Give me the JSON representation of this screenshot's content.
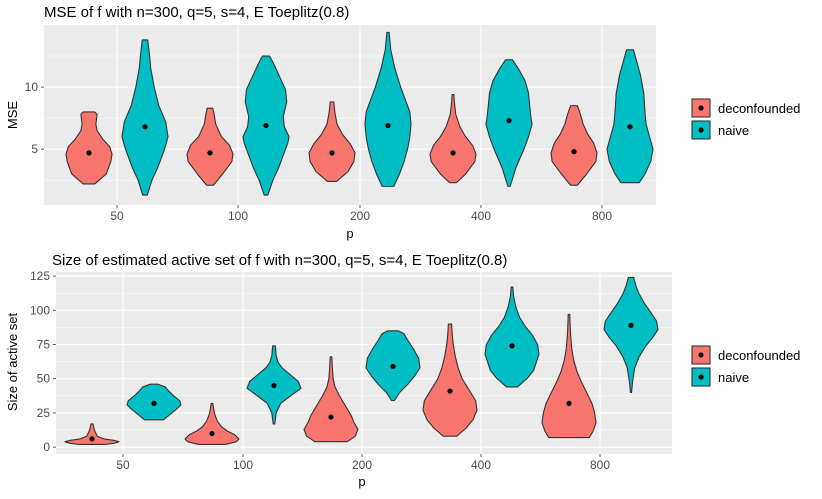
{
  "colors": {
    "deconfounded": "#F8766D",
    "naive": "#00BFC4"
  },
  "chart_data": [
    {
      "type": "violin",
      "title": "MSE of f with n=300, q=5, s=4, E Toeplitz(0.8)",
      "xlabel": "p",
      "ylabel": "MSE",
      "x_tick_labels": [
        "50",
        "100",
        "200",
        "400",
        "800"
      ],
      "y_ticks": [
        5,
        10
      ],
      "y_tick_labels": [
        "5",
        "10"
      ],
      "ylim": [
        0.5,
        15
      ],
      "legend": [
        "deconfounded",
        "naive"
      ],
      "groups": [
        {
          "p": "50",
          "series": "deconfounded",
          "min": 2.2,
          "max": 8.0,
          "median": 4.7,
          "density": [
            [
              2.2,
              0.25
            ],
            [
              3.0,
              0.75
            ],
            [
              4.0,
              0.95
            ],
            [
              4.6,
              1.0
            ],
            [
              5.2,
              0.9
            ],
            [
              5.8,
              0.6
            ],
            [
              6.5,
              0.35
            ],
            [
              7.0,
              0.3
            ],
            [
              7.8,
              0.35
            ],
            [
              8.0,
              0.25
            ]
          ]
        },
        {
          "p": "50",
          "series": "naive",
          "min": 1.3,
          "max": 13.8,
          "median": 6.8,
          "density": [
            [
              1.3,
              0.1
            ],
            [
              2.5,
              0.3
            ],
            [
              3.5,
              0.55
            ],
            [
              5.0,
              0.85
            ],
            [
              6.0,
              1.0
            ],
            [
              7.2,
              0.9
            ],
            [
              8.5,
              0.6
            ],
            [
              10.0,
              0.4
            ],
            [
              11.5,
              0.25
            ],
            [
              12.5,
              0.2
            ],
            [
              13.8,
              0.12
            ]
          ]
        },
        {
          "p": "100",
          "series": "deconfounded",
          "min": 2.1,
          "max": 8.3,
          "median": 4.7,
          "density": [
            [
              2.1,
              0.15
            ],
            [
              3.0,
              0.55
            ],
            [
              4.0,
              0.95
            ],
            [
              4.6,
              1.0
            ],
            [
              5.3,
              0.85
            ],
            [
              6.0,
              0.5
            ],
            [
              7.0,
              0.25
            ],
            [
              7.8,
              0.18
            ],
            [
              8.3,
              0.12
            ]
          ]
        },
        {
          "p": "100",
          "series": "naive",
          "min": 1.3,
          "max": 12.5,
          "median": 6.9,
          "density": [
            [
              1.3,
              0.08
            ],
            [
              2.5,
              0.3
            ],
            [
              3.5,
              0.55
            ],
            [
              4.5,
              0.75
            ],
            [
              5.5,
              0.95
            ],
            [
              6.0,
              1.0
            ],
            [
              6.8,
              0.8
            ],
            [
              7.6,
              0.75
            ],
            [
              8.8,
              0.9
            ],
            [
              9.8,
              0.85
            ],
            [
              11.0,
              0.55
            ],
            [
              12.0,
              0.3
            ],
            [
              12.5,
              0.15
            ]
          ]
        },
        {
          "p": "200",
          "series": "deconfounded",
          "min": 2.4,
          "max": 8.8,
          "median": 4.7,
          "density": [
            [
              2.4,
              0.2
            ],
            [
              3.2,
              0.7
            ],
            [
              4.0,
              0.95
            ],
            [
              4.7,
              1.0
            ],
            [
              5.4,
              0.8
            ],
            [
              6.2,
              0.45
            ],
            [
              7.0,
              0.22
            ],
            [
              8.0,
              0.12
            ],
            [
              8.8,
              0.08
            ]
          ]
        },
        {
          "p": "200",
          "series": "naive",
          "min": 2.0,
          "max": 14.4,
          "median": 6.9,
          "density": [
            [
              2.0,
              0.25
            ],
            [
              3.0,
              0.5
            ],
            [
              4.0,
              0.7
            ],
            [
              5.0,
              0.85
            ],
            [
              6.0,
              0.95
            ],
            [
              7.0,
              1.0
            ],
            [
              8.0,
              0.95
            ],
            [
              9.0,
              0.75
            ],
            [
              10.0,
              0.55
            ],
            [
              11.5,
              0.3
            ],
            [
              13.0,
              0.12
            ],
            [
              14.4,
              0.05
            ]
          ]
        },
        {
          "p": "400",
          "series": "deconfounded",
          "min": 2.3,
          "max": 9.4,
          "median": 4.7,
          "density": [
            [
              2.3,
              0.15
            ],
            [
              3.0,
              0.55
            ],
            [
              4.0,
              0.95
            ],
            [
              4.6,
              1.0
            ],
            [
              5.3,
              0.85
            ],
            [
              6.0,
              0.55
            ],
            [
              6.8,
              0.3
            ],
            [
              7.8,
              0.12
            ],
            [
              8.8,
              0.06
            ],
            [
              9.4,
              0.04
            ]
          ]
        },
        {
          "p": "400",
          "series": "naive",
          "min": 2.0,
          "max": 12.2,
          "median": 7.3,
          "density": [
            [
              2.0,
              0.05
            ],
            [
              3.5,
              0.3
            ],
            [
              5.0,
              0.65
            ],
            [
              6.0,
              0.85
            ],
            [
              7.0,
              1.0
            ],
            [
              7.6,
              0.95
            ],
            [
              8.5,
              0.9
            ],
            [
              9.5,
              0.85
            ],
            [
              10.5,
              0.7
            ],
            [
              11.5,
              0.4
            ],
            [
              12.2,
              0.15
            ]
          ]
        },
        {
          "p": "800",
          "series": "deconfounded",
          "min": 2.1,
          "max": 8.5,
          "median": 4.8,
          "density": [
            [
              2.1,
              0.15
            ],
            [
              3.0,
              0.55
            ],
            [
              4.0,
              0.95
            ],
            [
              4.7,
              1.0
            ],
            [
              5.5,
              0.85
            ],
            [
              6.2,
              0.6
            ],
            [
              7.0,
              0.4
            ],
            [
              7.8,
              0.28
            ],
            [
              8.5,
              0.15
            ]
          ]
        },
        {
          "p": "800",
          "series": "naive",
          "min": 2.3,
          "max": 13.0,
          "median": 6.8,
          "density": [
            [
              2.3,
              0.4
            ],
            [
              3.0,
              0.65
            ],
            [
              4.0,
              0.9
            ],
            [
              5.0,
              1.0
            ],
            [
              6.0,
              0.85
            ],
            [
              7.0,
              0.7
            ],
            [
              8.0,
              0.65
            ],
            [
              9.5,
              0.6
            ],
            [
              11.0,
              0.45
            ],
            [
              12.0,
              0.3
            ],
            [
              13.0,
              0.15
            ]
          ]
        }
      ]
    },
    {
      "type": "violin",
      "title": "Size of estimated active set of f with n=300, q=5, s=4, E Toeplitz(0.8)",
      "xlabel": "p",
      "ylabel": "Size of active set",
      "x_tick_labels": [
        "50",
        "100",
        "200",
        "400",
        "800"
      ],
      "y_ticks": [
        0,
        25,
        50,
        75,
        100,
        125
      ],
      "y_tick_labels": [
        "0",
        "25",
        "50",
        "75",
        "100",
        "125"
      ],
      "ylim": [
        -5,
        128
      ],
      "legend": [
        "deconfounded",
        "naive"
      ],
      "groups": [
        {
          "p": "50",
          "series": "deconfounded",
          "min": 2,
          "max": 17,
          "median": 6,
          "density": [
            [
              2,
              0.5
            ],
            [
              3,
              0.85
            ],
            [
              4,
              1.0
            ],
            [
              5,
              0.8
            ],
            [
              6,
              0.45
            ],
            [
              8,
              0.2
            ],
            [
              11,
              0.12
            ],
            [
              14,
              0.07
            ],
            [
              17,
              0.04
            ]
          ]
        },
        {
          "p": "50",
          "series": "naive",
          "min": 20,
          "max": 46,
          "median": 32,
          "density": [
            [
              20,
              0.35
            ],
            [
              24,
              0.6
            ],
            [
              28,
              0.85
            ],
            [
              31,
              1.0
            ],
            [
              34,
              0.95
            ],
            [
              38,
              0.7
            ],
            [
              42,
              0.5
            ],
            [
              44,
              0.42
            ],
            [
              46,
              0.15
            ]
          ]
        },
        {
          "p": "100",
          "series": "deconfounded",
          "min": 2,
          "max": 32,
          "median": 10,
          "density": [
            [
              2,
              0.5
            ],
            [
              4,
              0.9
            ],
            [
              6,
              1.0
            ],
            [
              9,
              0.85
            ],
            [
              12,
              0.55
            ],
            [
              15,
              0.35
            ],
            [
              19,
              0.2
            ],
            [
              24,
              0.1
            ],
            [
              28,
              0.06
            ],
            [
              32,
              0.03
            ]
          ]
        },
        {
          "p": "100",
          "series": "naive",
          "min": 17,
          "max": 74,
          "median": 45,
          "density": [
            [
              17,
              0.03
            ],
            [
              25,
              0.08
            ],
            [
              32,
              0.25
            ],
            [
              38,
              0.65
            ],
            [
              43,
              1.0
            ],
            [
              48,
              0.9
            ],
            [
              53,
              0.6
            ],
            [
              58,
              0.3
            ],
            [
              62,
              0.15
            ],
            [
              67,
              0.08
            ],
            [
              74,
              0.05
            ]
          ]
        },
        {
          "p": "200",
          "series": "deconfounded",
          "min": 4,
          "max": 66,
          "median": 22,
          "density": [
            [
              4,
              0.6
            ],
            [
              8,
              0.9
            ],
            [
              13,
              1.0
            ],
            [
              18,
              0.85
            ],
            [
              23,
              0.75
            ],
            [
              28,
              0.6
            ],
            [
              33,
              0.45
            ],
            [
              38,
              0.3
            ],
            [
              44,
              0.15
            ],
            [
              50,
              0.08
            ],
            [
              58,
              0.05
            ],
            [
              66,
              0.03
            ]
          ]
        },
        {
          "p": "200",
          "series": "naive",
          "min": 34,
          "max": 85,
          "median": 59,
          "density": [
            [
              34,
              0.05
            ],
            [
              40,
              0.25
            ],
            [
              46,
              0.55
            ],
            [
              52,
              0.8
            ],
            [
              58,
              1.0
            ],
            [
              65,
              0.95
            ],
            [
              72,
              0.75
            ],
            [
              78,
              0.55
            ],
            [
              83,
              0.4
            ],
            [
              85,
              0.2
            ]
          ]
        },
        {
          "p": "400",
          "series": "deconfounded",
          "min": 8,
          "max": 90,
          "median": 41,
          "density": [
            [
              8,
              0.25
            ],
            [
              14,
              0.6
            ],
            [
              20,
              0.85
            ],
            [
              27,
              1.0
            ],
            [
              34,
              0.95
            ],
            [
              42,
              0.7
            ],
            [
              50,
              0.45
            ],
            [
              58,
              0.3
            ],
            [
              66,
              0.2
            ],
            [
              75,
              0.12
            ],
            [
              83,
              0.08
            ],
            [
              90,
              0.06
            ]
          ]
        },
        {
          "p": "400",
          "series": "naive",
          "min": 44,
          "max": 117,
          "median": 74,
          "density": [
            [
              44,
              0.2
            ],
            [
              50,
              0.55
            ],
            [
              56,
              0.8
            ],
            [
              62,
              0.9
            ],
            [
              68,
              1.0
            ],
            [
              75,
              0.95
            ],
            [
              82,
              0.75
            ],
            [
              88,
              0.5
            ],
            [
              95,
              0.28
            ],
            [
              102,
              0.15
            ],
            [
              110,
              0.06
            ],
            [
              117,
              0.03
            ]
          ]
        },
        {
          "p": "800",
          "series": "deconfounded",
          "min": 7,
          "max": 97,
          "median": 32,
          "density": [
            [
              7,
              0.75
            ],
            [
              12,
              0.9
            ],
            [
              18,
              1.0
            ],
            [
              25,
              0.95
            ],
            [
              32,
              0.85
            ],
            [
              40,
              0.65
            ],
            [
              48,
              0.45
            ],
            [
              55,
              0.3
            ],
            [
              63,
              0.18
            ],
            [
              72,
              0.1
            ],
            [
              82,
              0.06
            ],
            [
              90,
              0.04
            ],
            [
              97,
              0.03
            ]
          ]
        },
        {
          "p": "800",
          "series": "naive",
          "min": 40,
          "max": 124,
          "median": 89,
          "density": [
            [
              40,
              0.02
            ],
            [
              48,
              0.06
            ],
            [
              58,
              0.14
            ],
            [
              66,
              0.3
            ],
            [
              74,
              0.55
            ],
            [
              80,
              0.8
            ],
            [
              86,
              1.0
            ],
            [
              92,
              0.95
            ],
            [
              98,
              0.75
            ],
            [
              105,
              0.5
            ],
            [
              112,
              0.3
            ],
            [
              118,
              0.18
            ],
            [
              124,
              0.1
            ]
          ]
        }
      ]
    }
  ]
}
